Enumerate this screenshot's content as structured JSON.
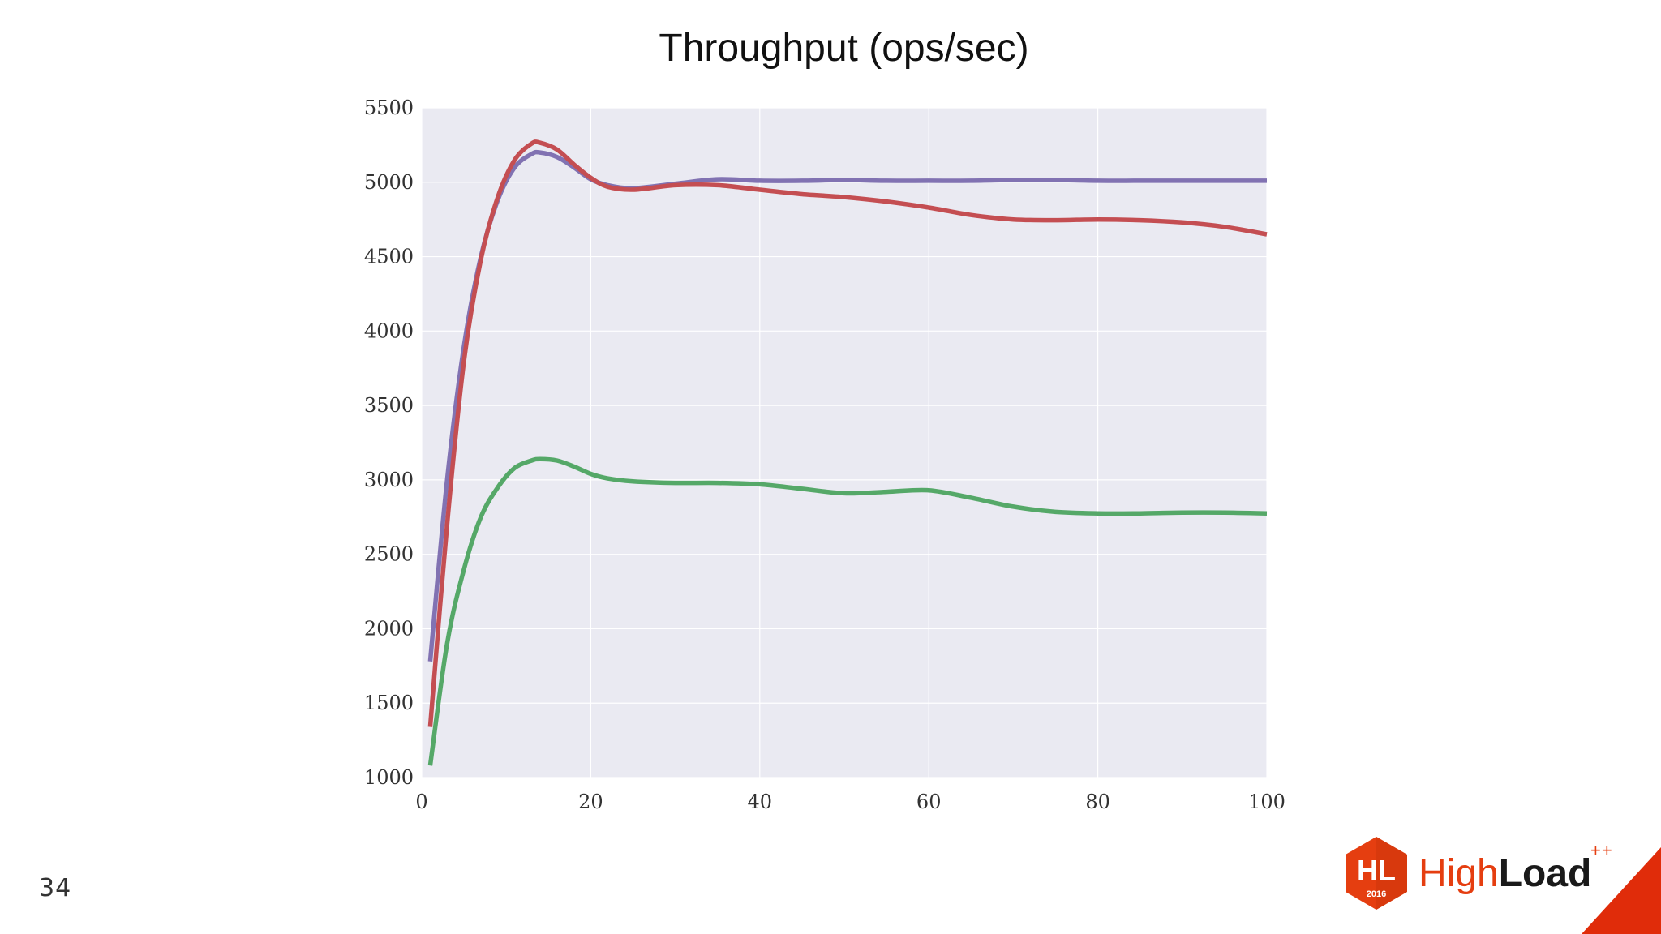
{
  "chart_data": {
    "type": "line",
    "title": "Throughput (ops/sec)",
    "xlabel": "",
    "ylabel": "",
    "xlim": [
      0,
      100
    ],
    "ylim": [
      1000,
      5500
    ],
    "x_ticks": [
      "0",
      "20",
      "40",
      "60",
      "80",
      "100"
    ],
    "x_tick_values": [
      0,
      20,
      40,
      60,
      80,
      100
    ],
    "y_ticks": [
      "1000",
      "1500",
      "2000",
      "2500",
      "3000",
      "3500",
      "4000",
      "4500",
      "5000",
      "5500"
    ],
    "y_tick_values": [
      1000,
      1500,
      2000,
      2500,
      3000,
      3500,
      4000,
      4500,
      5000,
      5500
    ],
    "grid": true,
    "background": "#eaeaf2",
    "x": [
      1,
      3,
      5,
      7,
      9,
      11,
      13,
      14,
      16,
      18,
      20,
      22,
      25,
      30,
      35,
      40,
      45,
      50,
      55,
      60,
      65,
      70,
      75,
      80,
      85,
      90,
      95,
      100
    ],
    "series": [
      {
        "color": "#8172b2",
        "values": [
          1780,
          3000,
          3900,
          4500,
          4880,
          5100,
          5190,
          5200,
          5170,
          5100,
          5020,
          4980,
          4960,
          4990,
          5020,
          5010,
          5010,
          5015,
          5010,
          5010,
          5010,
          5015,
          5015,
          5010,
          5010,
          5010,
          5010,
          5010
        ]
      },
      {
        "color": "#c44e52",
        "values": [
          1340,
          2700,
          3800,
          4480,
          4900,
          5150,
          5260,
          5265,
          5220,
          5120,
          5030,
          4970,
          4950,
          4980,
          4980,
          4950,
          4920,
          4900,
          4870,
          4830,
          4780,
          4750,
          4745,
          4750,
          4745,
          4730,
          4700,
          4650
        ]
      },
      {
        "color": "#55a868",
        "values": [
          1080,
          1900,
          2400,
          2750,
          2950,
          3080,
          3130,
          3140,
          3130,
          3090,
          3040,
          3010,
          2990,
          2980,
          2980,
          2970,
          2940,
          2910,
          2920,
          2930,
          2880,
          2820,
          2785,
          2775,
          2775,
          2780,
          2780,
          2775
        ]
      }
    ]
  },
  "slide": {
    "page_number": "34"
  },
  "logo": {
    "badge_letters": "HL",
    "badge_year": "2016",
    "word_high": "High",
    "word_load": "Load",
    "superscript": "++"
  },
  "colors": {
    "accent": "#e53e10",
    "plot_background": "#eaeaf2",
    "grid": "#ffffff"
  }
}
